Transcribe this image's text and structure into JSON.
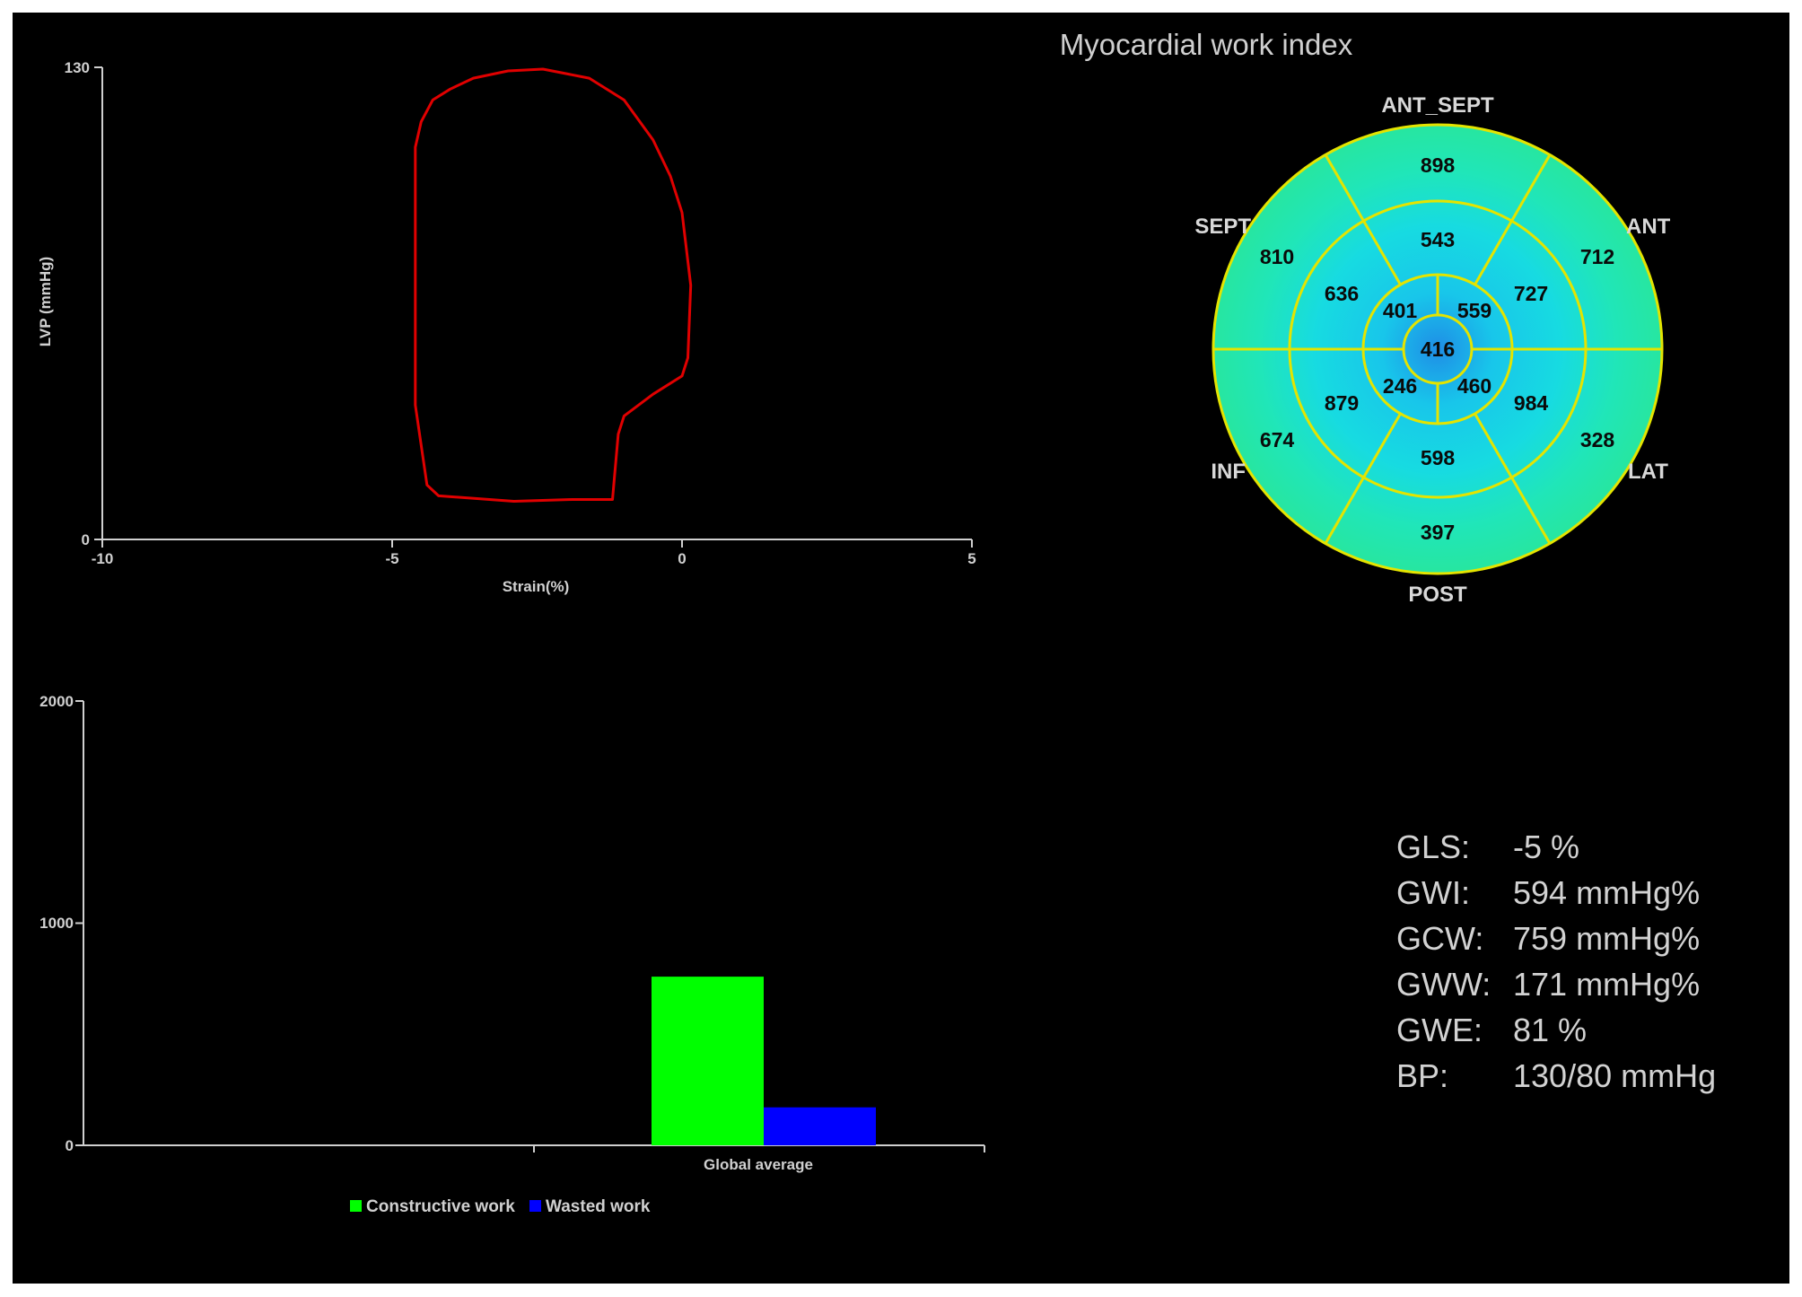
{
  "chart_data": [
    {
      "type": "line",
      "xlabel": "Strain(%)",
      "ylabel": "LVP (mmHg)",
      "xlim": [
        -10,
        5
      ],
      "ylim": [
        0,
        130
      ],
      "x_ticks": [
        "-10",
        "-5",
        "0",
        "5"
      ],
      "y_ticks": [
        "0",
        "130"
      ],
      "series": [
        {
          "color": "#e00000",
          "x": [
            -4.6,
            -4.6,
            -4.5,
            -4.3,
            -4.0,
            -3.6,
            -3.0,
            -2.4,
            -1.6,
            -1.0,
            -0.5,
            -0.2,
            0.0,
            0.15,
            0.1,
            0.0,
            -0.5,
            -1.0,
            -1.1,
            -1.2,
            -1.9,
            -2.9,
            -4.2,
            -4.4,
            -4.6,
            -4.6
          ],
          "y": [
            95,
            108,
            115,
            121,
            124,
            127,
            129,
            129.5,
            127,
            121,
            110,
            100,
            90,
            70,
            50,
            45,
            40,
            34,
            29,
            11,
            11,
            10.5,
            12,
            15,
            37,
            95
          ]
        }
      ]
    },
    {
      "type": "bar",
      "categories": [
        "Global average"
      ],
      "ylim": [
        0,
        2000
      ],
      "y_ticks": [
        "0",
        "1000",
        "2000"
      ],
      "series": [
        {
          "name": "Constructive work",
          "color": "#00ff00",
          "values": [
            759
          ]
        },
        {
          "name": "Wasted work",
          "color": "#0000ff",
          "values": [
            171
          ]
        }
      ]
    }
  ],
  "bullseye": {
    "title": "Myocardial work index",
    "walls": {
      "ant_sept": "ANT_SEPT",
      "ant": "ANT",
      "lat": "LAT",
      "post": "POST",
      "inf": "INF",
      "sept": "SEPT"
    },
    "basal": {
      "ant_sept": "898",
      "ant": "712",
      "lat": "328",
      "post": "397",
      "inf": "674",
      "sept": "810"
    },
    "mid": {
      "ant_sept": "543",
      "ant": "727",
      "lat": "984",
      "post": "598",
      "inf": "879",
      "sept": "636"
    },
    "apical": {
      "ant": "559",
      "lat": "460",
      "inf": "246",
      "sept": "401"
    },
    "apex": "416",
    "line_color": "#e4e400"
  },
  "stats": [
    {
      "label": "GLS:",
      "value": "-5 %"
    },
    {
      "label": "GWI:",
      "value": "594 mmHg%"
    },
    {
      "label": "GCW:",
      "value": "759 mmHg%"
    },
    {
      "label": "GWW:",
      "value": "171 mmHg%"
    },
    {
      "label": "GWE:",
      "value": "81 %"
    },
    {
      "label": "BP:",
      "value": "130/80 mmHg"
    }
  ]
}
